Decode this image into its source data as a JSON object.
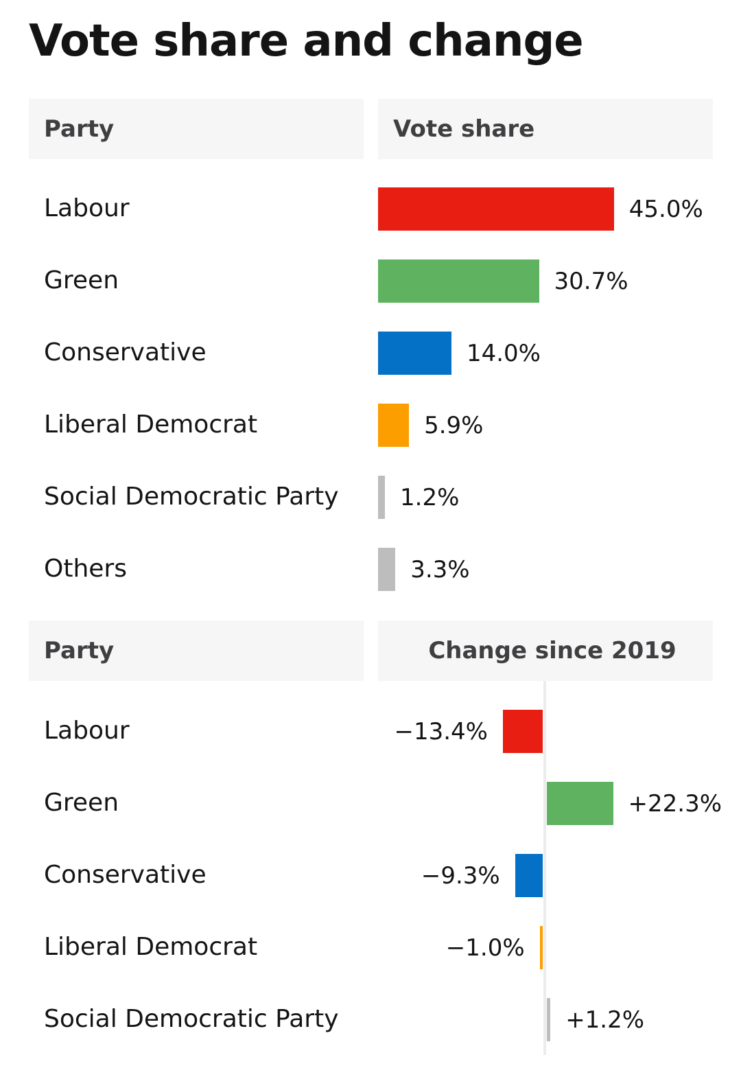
{
  "title": "Vote share and change",
  "vote_share_table": {
    "header_party": "Party",
    "header_value": "Vote share"
  },
  "change_table": {
    "header_party": "Party",
    "header_value": "Change since 2019"
  },
  "colors": {
    "Labour": "#e81e12",
    "Green": "#5fb25f",
    "Conservative": "#0571c6",
    "Liberal Democrat": "#fc9d00",
    "Social Democratic Party": "#bdbdbd",
    "Others": "#bdbdbd"
  },
  "chart_data": [
    {
      "type": "bar",
      "title": "Vote share",
      "categories": [
        "Labour",
        "Green",
        "Conservative",
        "Liberal Democrat",
        "Social Democratic Party",
        "Others"
      ],
      "values": [
        45.0,
        30.7,
        14.0,
        5.9,
        1.2,
        3.3
      ],
      "labels": [
        "45.0%",
        "30.7%",
        "14.0%",
        "5.9%",
        "1.2%",
        "3.3%"
      ],
      "unit": "%",
      "orientation": "horizontal"
    },
    {
      "type": "bar",
      "title": "Change since 2019",
      "categories": [
        "Labour",
        "Green",
        "Conservative",
        "Liberal Democrat",
        "Social Democratic Party"
      ],
      "values": [
        -13.4,
        22.3,
        -9.3,
        -1.0,
        1.2
      ],
      "labels": [
        "−13.4%",
        "+22.3%",
        "−9.3%",
        "−1.0%",
        "+1.2%"
      ],
      "unit": "%",
      "orientation": "horizontal"
    }
  ]
}
